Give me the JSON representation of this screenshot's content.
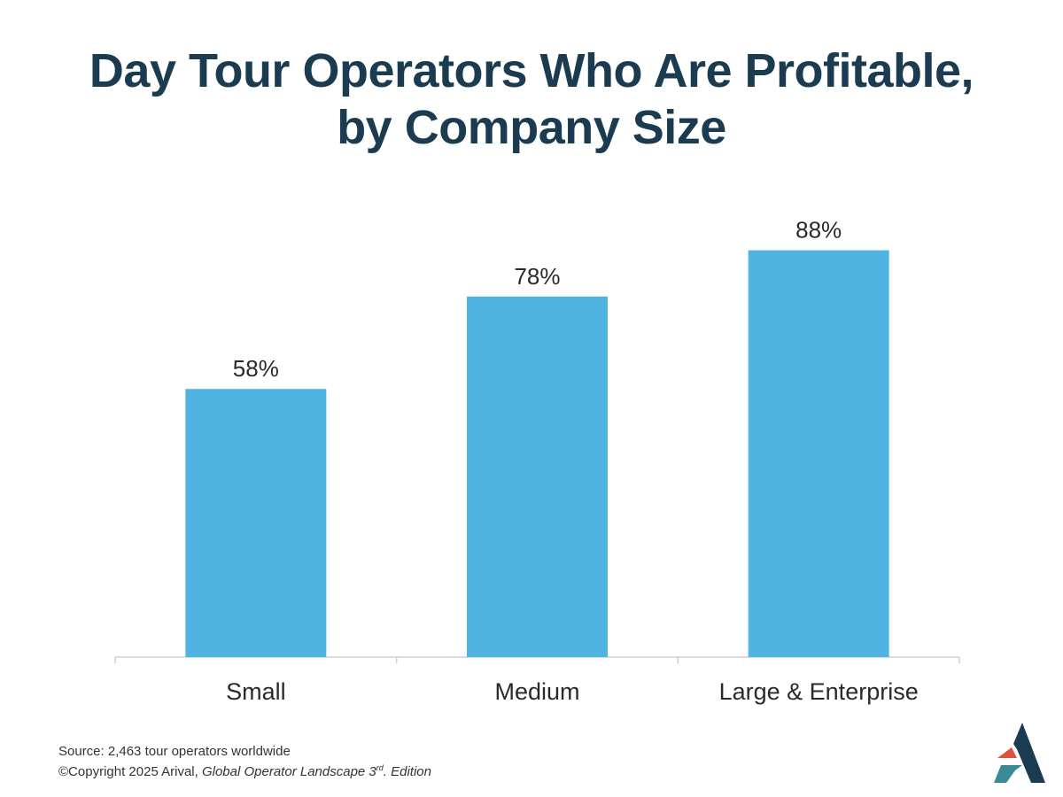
{
  "chart_data": {
    "type": "bar",
    "title_line1": "Day Tour Operators Who Are Profitable,",
    "title_line2": "by Company Size",
    "categories": [
      "Small",
      "Medium",
      "Large & Enterprise"
    ],
    "values": [
      58,
      78,
      88
    ],
    "value_labels": [
      "58%",
      "78%",
      "88%"
    ],
    "ylim": [
      0,
      100
    ],
    "grid": false,
    "bar_color": "#4fb4e2"
  },
  "footer": {
    "source": "Source: 2,463 tour operators worldwide",
    "copyright": "©Copyright 2025 Arival, ",
    "publication": "Global Operator Landscape 3",
    "superscript": "rd",
    "edition": ". Edition"
  },
  "logo": {
    "name": "Arival logo",
    "colors": [
      "#1b3b50",
      "#e0503a",
      "#3a8a96"
    ]
  }
}
